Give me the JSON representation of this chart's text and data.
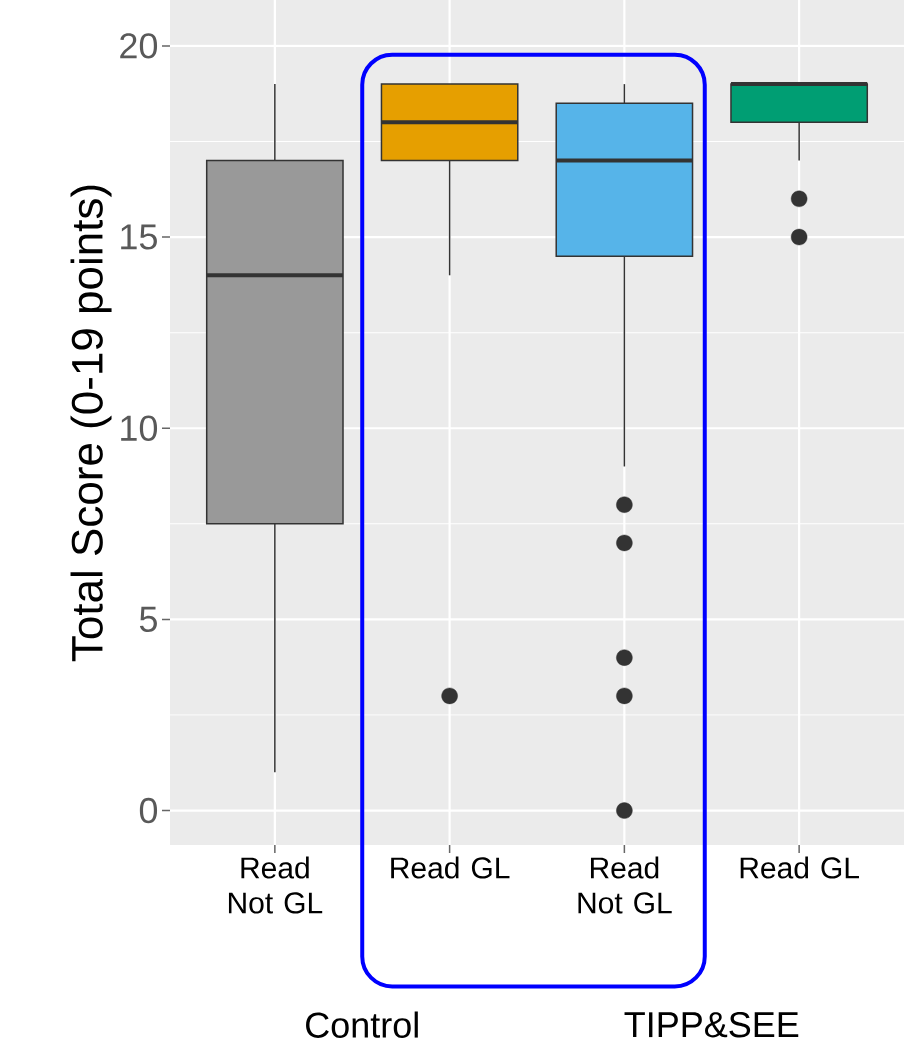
{
  "chart_data": {
    "type": "box",
    "ylabel": "Total Score (0-19 points)",
    "categories": [
      "Read Not GL",
      "Read GL",
      "Read Not GL",
      "Read GL"
    ],
    "colors": [
      "#999999",
      "#E69F00",
      "#56B4E9",
      "#009E73"
    ],
    "boxes": [
      {
        "low": 1,
        "q1": 7.5,
        "median": 14,
        "q3": 17,
        "high": 19
      },
      {
        "low": 14,
        "q1": 17,
        "median": 18,
        "q3": 19,
        "high": 19,
        "outliers": [
          3
        ]
      },
      {
        "low": 9,
        "q1": 14.5,
        "median": 17,
        "q3": 18.5,
        "high": 19,
        "outliers": [
          8,
          7,
          4,
          3,
          0
        ]
      },
      {
        "low": 17,
        "q1": 18,
        "median": 19,
        "q3": 19,
        "high": 19,
        "outliers": [
          16,
          15
        ]
      }
    ],
    "ylim": [
      -0.9,
      21.2
    ],
    "yticks": [
      0,
      5,
      10,
      15,
      20
    ],
    "grid": true,
    "annotations": [
      "Control",
      "TIPP&SEE"
    ]
  }
}
